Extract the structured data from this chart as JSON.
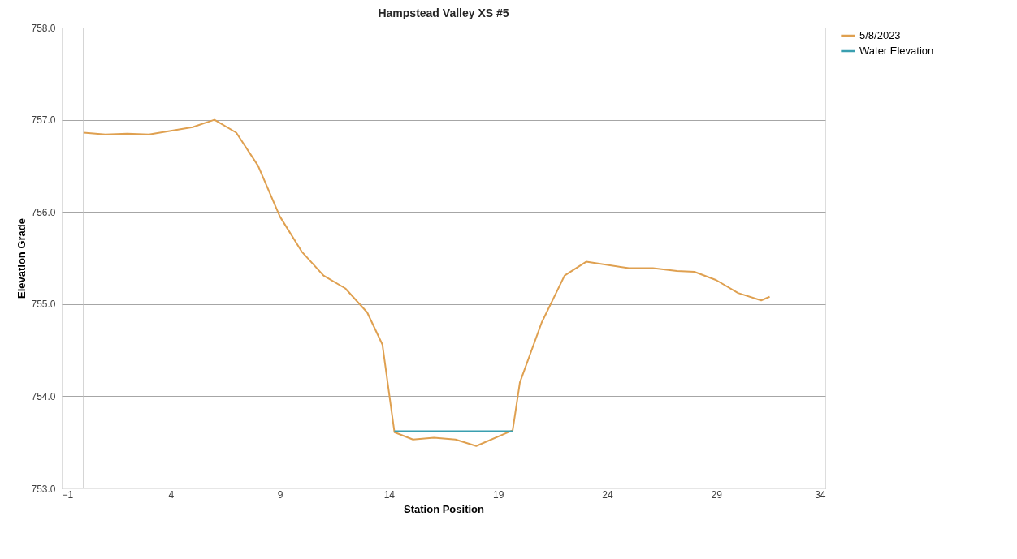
{
  "chart_data": {
    "type": "line",
    "title": "Hampstead Valley XS #5",
    "xlabel": "Station Position",
    "ylabel": "Elevation Grade",
    "xlim": [
      -1,
      34
    ],
    "xticks": [
      -1,
      4,
      9,
      14,
      19,
      24,
      29,
      34
    ],
    "ylim": [
      753,
      758
    ],
    "yticks": [
      {
        "value": 753,
        "label": "753.0"
      },
      {
        "value": 754,
        "label": "754.0"
      },
      {
        "value": 755,
        "label": "755.0"
      },
      {
        "value": 756,
        "label": "756.0"
      },
      {
        "value": 757,
        "label": "757.0"
      },
      {
        "value": 758,
        "label": "758.0"
      }
    ],
    "grid": "y",
    "legend": "right",
    "marker": "none",
    "line_style": "solid",
    "ref_lines": [
      {
        "axis": "x",
        "value": 0,
        "color": "#bfbfbf"
      }
    ],
    "series": [
      {
        "name": "5/8/2023",
        "color": "#dfa050",
        "x": [
          0,
          1,
          2,
          3,
          4,
          5,
          6,
          7,
          8,
          9,
          10,
          11,
          12,
          13,
          13.7,
          14.25,
          15.1,
          16.06,
          17.05,
          18.0,
          19.67,
          20.0,
          21,
          22.05,
          23.04,
          25.0,
          26.1,
          27.2,
          28.0,
          29.0,
          30.0,
          31.06,
          31.45
        ],
        "values": [
          756.86,
          756.84,
          756.85,
          756.84,
          756.88,
          756.92,
          757.0,
          756.86,
          756.5,
          755.95,
          755.57,
          755.31,
          755.17,
          754.91,
          754.56,
          753.61,
          753.53,
          753.55,
          753.53,
          753.46,
          753.63,
          754.15,
          754.8,
          755.31,
          755.46,
          755.39,
          755.39,
          755.36,
          755.35,
          755.26,
          755.12,
          755.04,
          755.08
        ]
      },
      {
        "name": "Water Elevation",
        "color": "#3a9fb0",
        "x": [
          14.25,
          19.67
        ],
        "values": [
          753.62,
          753.62
        ]
      }
    ]
  }
}
